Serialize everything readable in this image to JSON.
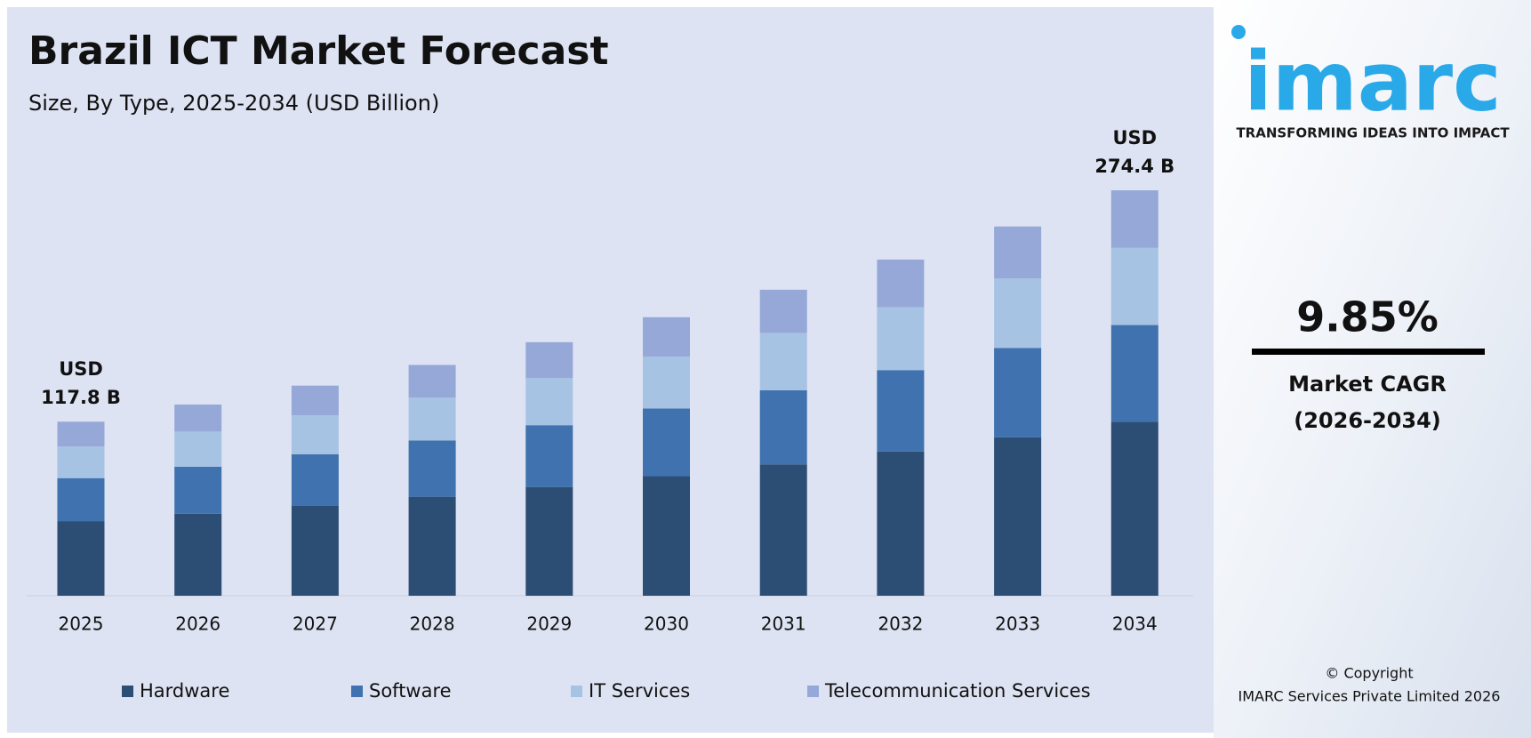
{
  "chart_data": {
    "type": "stacked-bar",
    "title": "Brazil ICT Market Forecast",
    "subtitle": "Size, By Type, 2025-2034 (USD Billion)",
    "categories": [
      "2025",
      "2026",
      "2027",
      "2028",
      "2029",
      "2030",
      "2031",
      "2032",
      "2033",
      "2034"
    ],
    "series": [
      {
        "name": "Hardware",
        "color": "#2c4d74",
        "values": [
          50.5,
          55.5,
          61.0,
          67.0,
          73.6,
          80.9,
          88.9,
          97.6,
          107.2,
          117.7
        ]
      },
      {
        "name": "Software",
        "color": "#3f72ae",
        "values": [
          29.1,
          31.8,
          34.8,
          38.1,
          41.8,
          45.8,
          50.2,
          55.1,
          60.5,
          65.5
        ]
      },
      {
        "name": "IT Services",
        "color": "#a7c3e3",
        "values": [
          21.4,
          23.8,
          26.3,
          29.0,
          32.0,
          35.2,
          38.8,
          42.6,
          47.0,
          52.2
        ]
      },
      {
        "name": "Telecommunication Services",
        "color": "#96a8d8",
        "values": [
          16.8,
          18.3,
          20.1,
          22.1,
          24.2,
          26.6,
          29.2,
          32.2,
          35.2,
          39.0
        ]
      }
    ],
    "annotations": [
      {
        "lines": [
          "USD",
          "117.8 B"
        ]
      },
      {
        "lines": [
          "USD",
          "274.4 B"
        ]
      }
    ],
    "legend": "bottom"
  },
  "side_panel": {
    "logo": "imarc",
    "tagline": "TRANSFORMING IDEAS INTO IMPACT",
    "cagr": "9.85%",
    "cagr_label": "Market CAGR",
    "cagr_period": "(2026-2034)",
    "copyright": [
      "© Copyright",
      "IMARC Services Private Limited 2026"
    ]
  }
}
